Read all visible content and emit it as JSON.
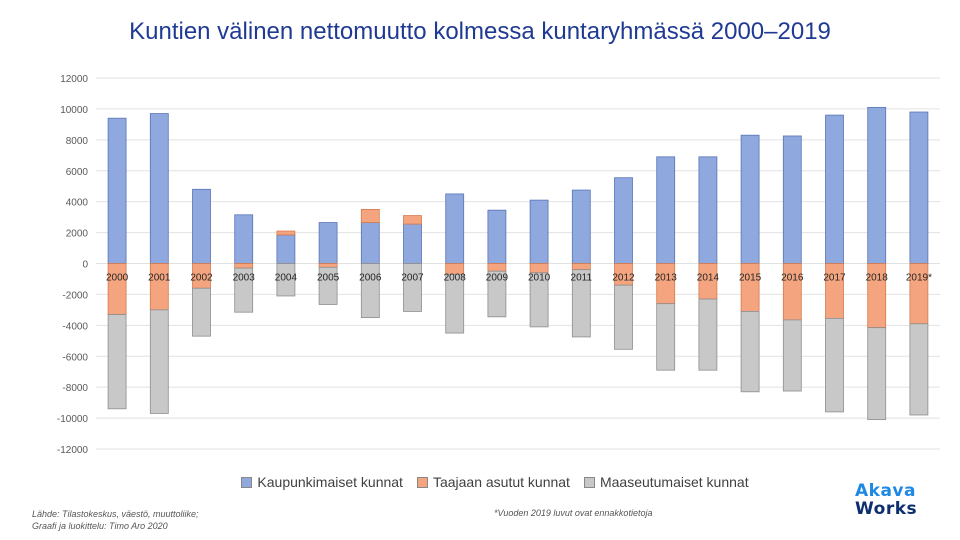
{
  "title": "Kuntien välinen nettomuutto kolmessa kuntaryhmässä 2000–2019",
  "source_line1": "Lähde: Tilastokeskus, väestö, muuttoliike;",
  "source_line2": "Graafi ja luokittelu: Timo Aro 2020",
  "footnote": "*Vuoden 2019 luvut ovat ennakkotietoja",
  "logo_line1": "Akava",
  "logo_line2": "Works",
  "colors": {
    "series0": "#8fa8dd",
    "series1": "#f4a57f",
    "series2": "#c8c8c8"
  },
  "chart_data": {
    "type": "bar",
    "stacked": true,
    "title": "Kuntien välinen nettomuutto kolmessa kuntaryhmässä 2000–2019",
    "categories": [
      "2000",
      "2001",
      "2002",
      "2003",
      "2004",
      "2005",
      "2006",
      "2007",
      "2008",
      "2009",
      "2010",
      "2011",
      "2012",
      "2013",
      "2014",
      "2015",
      "2016",
      "2017",
      "2018",
      "2019*"
    ],
    "series": [
      {
        "name": "Kaupunkimaiset kunnat",
        "values": [
          9400,
          9700,
          4800,
          3150,
          1850,
          2650,
          2650,
          2550,
          4500,
          3450,
          4100,
          4750,
          5550,
          6900,
          6900,
          8300,
          8250,
          9600,
          10100,
          9800
        ]
      },
      {
        "name": "Taajaan asutut kunnat",
        "values": [
          -3300,
          -3000,
          -1600,
          -300,
          250,
          -250,
          850,
          550,
          -700,
          -500,
          -600,
          -400,
          -1400,
          -2600,
          -2300,
          -3100,
          -3650,
          -3550,
          -4150,
          -3900
        ]
      },
      {
        "name": "Maaseutumaiset kunnat",
        "values": [
          -6100,
          -6700,
          -3100,
          -2850,
          -2100,
          -2400,
          -3500,
          -3100,
          -3800,
          -2950,
          -3500,
          -4350,
          -4150,
          -4300,
          -4600,
          -5200,
          -4600,
          -6050,
          -5950,
          -5900
        ]
      }
    ],
    "ylim": [
      -12000,
      12000
    ],
    "yticks": [
      12000,
      10000,
      8000,
      6000,
      4000,
      2000,
      0,
      -2000,
      -4000,
      -6000,
      -8000,
      -10000,
      -12000
    ],
    "grid": true,
    "legend_position": "bottom"
  }
}
